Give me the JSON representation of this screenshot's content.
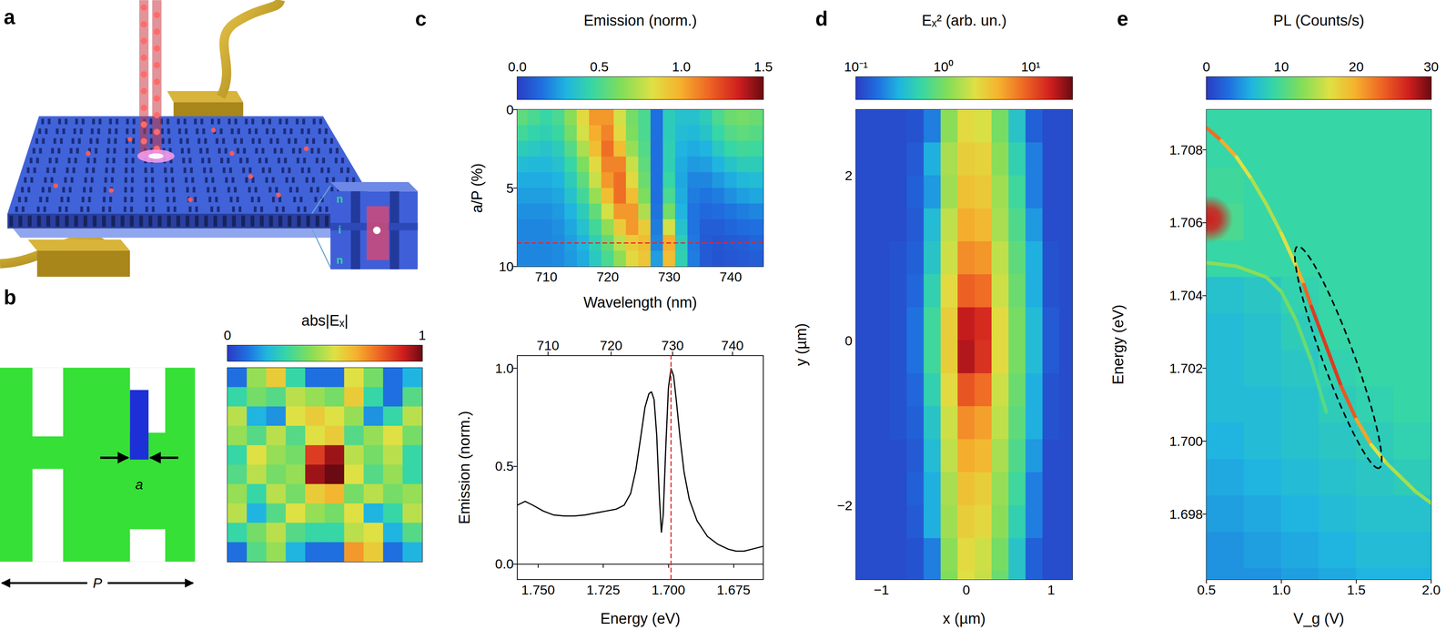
{
  "panel_labels": [
    "a",
    "b",
    "c",
    "d",
    "e"
  ],
  "diagram_a": {
    "layers": [
      "n",
      "i",
      "n"
    ]
  },
  "diagram_b": {
    "labels": [
      "a",
      "P"
    ]
  },
  "chart_data": [
    {
      "type": "heatmap",
      "tick_labels": false,
      "colorbar": {
        "label": "abs|Eₓ|",
        "clim": [
          0,
          1
        ],
        "ticks": [
          0,
          1
        ]
      },
      "cells": [
        [
          0.1,
          0.45,
          0.6,
          0.3,
          0.1,
          0.1,
          0.55,
          0.4,
          0.1,
          0.2
        ],
        [
          0.3,
          0.4,
          0.35,
          0.5,
          0.45,
          0.4,
          0.6,
          0.3,
          0.1,
          0.35
        ],
        [
          0.5,
          0.2,
          0.15,
          0.55,
          0.6,
          0.55,
          0.45,
          0.15,
          0.3,
          0.5
        ],
        [
          0.45,
          0.35,
          0.5,
          0.35,
          0.55,
          0.6,
          0.35,
          0.45,
          0.55,
          0.4
        ],
        [
          0.3,
          0.55,
          0.45,
          0.4,
          0.85,
          0.95,
          0.5,
          0.4,
          0.5,
          0.3
        ],
        [
          0.35,
          0.5,
          0.4,
          0.45,
          0.95,
          1.0,
          0.55,
          0.35,
          0.45,
          0.3
        ],
        [
          0.45,
          0.3,
          0.5,
          0.4,
          0.6,
          0.65,
          0.4,
          0.5,
          0.4,
          0.45
        ],
        [
          0.5,
          0.2,
          0.35,
          0.55,
          0.45,
          0.4,
          0.55,
          0.2,
          0.3,
          0.5
        ],
        [
          0.3,
          0.4,
          0.5,
          0.35,
          0.3,
          0.3,
          0.5,
          0.55,
          0.2,
          0.35
        ],
        [
          0.1,
          0.35,
          0.45,
          0.2,
          0.1,
          0.1,
          0.7,
          0.6,
          0.1,
          0.2
        ]
      ]
    },
    {
      "type": "heatmap",
      "xlabel": "Wavelength (nm)",
      "ylabel": "a/P (%)",
      "xlim": [
        705.3,
        745.3
      ],
      "ylim": [
        10,
        0
      ],
      "xticks": [
        710,
        720,
        730,
        740
      ],
      "yticks": [
        0,
        5,
        10
      ],
      "colorbar": {
        "label": "Emission (norm.)",
        "clim": [
          0,
          1.5
        ],
        "ticks": [
          {
            "value": 0,
            "label": "0.0"
          },
          0.5,
          {
            "value": 1,
            "label": "1.0"
          },
          1.5
        ]
      },
      "annotations": [
        {
          "y": 8.5,
          "color": "#e8262a",
          "line_style": "dashed"
        }
      ],
      "x": [
        706,
        708,
        710,
        712,
        714,
        716,
        718,
        720,
        722,
        724,
        726,
        728,
        730,
        732,
        734,
        736,
        738,
        740,
        742,
        744,
        746
      ],
      "y": [
        0.5,
        1.5,
        2.5,
        3.5,
        4.5,
        5.5,
        6.5,
        7.5,
        8.5,
        9.5
      ],
      "cells": [
        [
          0.55,
          0.5,
          0.45,
          0.5,
          0.65,
          0.85,
          1.05,
          1.05,
          0.8,
          0.6,
          0.5,
          0.15,
          0.4,
          0.35,
          0.35,
          0.4,
          0.5,
          0.58,
          0.6,
          0.58,
          0.55
        ],
        [
          0.48,
          0.44,
          0.42,
          0.46,
          0.6,
          0.8,
          1.0,
          1.1,
          0.85,
          0.62,
          0.5,
          0.15,
          0.4,
          0.33,
          0.32,
          0.36,
          0.45,
          0.52,
          0.55,
          0.53,
          0.5
        ],
        [
          0.4,
          0.38,
          0.36,
          0.4,
          0.52,
          0.72,
          0.95,
          1.15,
          0.95,
          0.68,
          0.52,
          0.15,
          0.42,
          0.3,
          0.28,
          0.3,
          0.38,
          0.45,
          0.48,
          0.47,
          0.45
        ],
        [
          0.33,
          0.32,
          0.32,
          0.35,
          0.45,
          0.62,
          0.85,
          1.1,
          1.1,
          0.78,
          0.55,
          0.15,
          0.42,
          0.28,
          0.24,
          0.25,
          0.3,
          0.36,
          0.4,
          0.4,
          0.38
        ],
        [
          0.28,
          0.28,
          0.28,
          0.3,
          0.4,
          0.55,
          0.78,
          1.05,
          1.15,
          0.85,
          0.58,
          0.15,
          0.45,
          0.27,
          0.2,
          0.2,
          0.24,
          0.28,
          0.32,
          0.33,
          0.32
        ],
        [
          0.25,
          0.25,
          0.25,
          0.27,
          0.35,
          0.48,
          0.68,
          0.95,
          1.15,
          0.95,
          0.62,
          0.15,
          0.5,
          0.28,
          0.18,
          0.16,
          0.18,
          0.22,
          0.25,
          0.27,
          0.27
        ],
        [
          0.22,
          0.22,
          0.22,
          0.24,
          0.3,
          0.4,
          0.56,
          0.8,
          1.05,
          1.05,
          0.72,
          0.16,
          0.6,
          0.3,
          0.16,
          0.13,
          0.14,
          0.16,
          0.18,
          0.2,
          0.2
        ],
        [
          0.2,
          0.2,
          0.2,
          0.22,
          0.27,
          0.35,
          0.48,
          0.66,
          0.9,
          1.05,
          0.9,
          0.18,
          0.8,
          0.35,
          0.16,
          0.1,
          0.1,
          0.12,
          0.14,
          0.15,
          0.15
        ],
        [
          0.2,
          0.2,
          0.2,
          0.21,
          0.25,
          0.3,
          0.42,
          0.56,
          0.75,
          0.9,
          0.95,
          0.2,
          1.0,
          0.4,
          0.17,
          0.09,
          0.08,
          0.09,
          0.1,
          0.12,
          0.12
        ],
        [
          0.2,
          0.2,
          0.2,
          0.21,
          0.24,
          0.28,
          0.38,
          0.5,
          0.66,
          0.85,
          0.92,
          0.25,
          0.95,
          0.42,
          0.18,
          0.09,
          0.07,
          0.08,
          0.09,
          0.1,
          0.1
        ]
      ]
    },
    {
      "type": "line",
      "xlabel": "Energy (eV)",
      "ylabel": "Emission (norm.)",
      "color": "#000000",
      "xlim": [
        1.758,
        1.6636
      ],
      "ylim": [
        -0.08,
        1.065
      ],
      "xticks": [
        {
          "value": 1.75,
          "label": "1.750"
        },
        1.725,
        {
          "value": 1.7,
          "label": "1.700"
        },
        1.675
      ],
      "x2ticks": [
        {
          "value": 1.74625,
          "label": "710"
        },
        {
          "value": 1.722,
          "label": "720"
        },
        {
          "value": 1.69841,
          "label": "730"
        },
        {
          "value": 1.67546,
          "label": "740"
        }
      ],
      "yticks": [
        {
          "value": 0,
          "label": "0.0"
        },
        0.5,
        {
          "value": 1,
          "label": "1.0"
        }
      ],
      "annotations": [
        {
          "x": 1.699,
          "color": "#e8262a",
          "line_style": "dashed"
        }
      ],
      "x": [
        1.758,
        1.755,
        1.752,
        1.748,
        1.744,
        1.74,
        1.736,
        1.732,
        1.728,
        1.724,
        1.72,
        1.717,
        1.7145,
        1.7125,
        1.7105,
        1.709,
        1.7075,
        1.7065,
        1.7055,
        1.7045,
        1.7035,
        1.7027,
        1.702,
        1.701,
        1.7,
        1.699,
        1.698,
        1.697,
        1.6955,
        1.694,
        1.692,
        1.689,
        1.685,
        1.681,
        1.677,
        1.674,
        1.671,
        1.668,
        1.6636
      ],
      "values": [
        0.3,
        0.32,
        0.3,
        0.27,
        0.25,
        0.245,
        0.245,
        0.25,
        0.26,
        0.27,
        0.28,
        0.3,
        0.36,
        0.48,
        0.66,
        0.8,
        0.87,
        0.88,
        0.84,
        0.66,
        0.35,
        0.16,
        0.25,
        0.6,
        0.9,
        1.0,
        0.96,
        0.84,
        0.64,
        0.47,
        0.33,
        0.22,
        0.14,
        0.1,
        0.075,
        0.065,
        0.065,
        0.075,
        0.09
      ]
    },
    {
      "type": "heatmap",
      "xlabel": "x (µm)",
      "ylabel": "y (µm)",
      "xlim": [
        -1.3,
        1.25
      ],
      "ylim": [
        -2.9,
        2.8
      ],
      "xticks": [
        {
          "value": -1,
          "label": "−1"
        },
        0,
        1
      ],
      "yticks": [
        {
          "value": -2,
          "label": "−2"
        },
        0,
        2
      ],
      "colorbar": {
        "label": "Eₓ² (arb. un.)",
        "clim": [
          0.1,
          30
        ],
        "log": true,
        "ticks": [
          {
            "value": 0.1,
            "label": "10⁻¹"
          },
          {
            "value": 1,
            "label": "10⁰"
          },
          {
            "value": 10,
            "label": "10¹"
          }
        ]
      },
      "x": [
        -1.2,
        -1.0,
        -0.8,
        -0.6,
        -0.4,
        -0.2,
        0,
        0.2,
        0.4,
        0.6,
        0.8,
        1.0,
        1.2
      ],
      "y": [
        2.6,
        2.2,
        1.8,
        1.4,
        1.0,
        0.6,
        0.2,
        -0.2,
        -0.6,
        -1.0,
        -1.4,
        -1.8,
        -2.2,
        -2.6,
        -3.0
      ],
      "cells": [
        [
          0.12,
          0.12,
          0.12,
          0.13,
          0.2,
          1.2,
          2.5,
          2.2,
          1.0,
          0.4,
          0.15,
          0.12,
          0.12
        ],
        [
          0.12,
          0.12,
          0.12,
          0.14,
          0.3,
          1.5,
          3,
          2.8,
          1.2,
          0.5,
          0.2,
          0.12,
          0.12
        ],
        [
          0.12,
          0.12,
          0.12,
          0.15,
          0.25,
          1.4,
          3.5,
          3.2,
          1.4,
          0.6,
          0.2,
          0.12,
          0.12
        ],
        [
          0.12,
          0.12,
          0.12,
          0.14,
          0.35,
          1.8,
          4.5,
          4,
          1.5,
          0.7,
          0.25,
          0.12,
          0.12
        ],
        [
          0.12,
          0.12,
          0.13,
          0.15,
          0.4,
          2,
          6,
          5.5,
          1.8,
          0.8,
          0.3,
          0.13,
          0.12
        ],
        [
          0.12,
          0.12,
          0.13,
          0.16,
          0.5,
          2.5,
          9,
          8,
          2,
          0.9,
          0.3,
          0.13,
          0.12
        ],
        [
          0.12,
          0.12,
          0.13,
          0.18,
          0.6,
          3,
          18,
          15,
          2.5,
          1,
          0.35,
          0.14,
          0.12
        ],
        [
          0.12,
          0.12,
          0.13,
          0.18,
          0.6,
          3,
          20,
          14,
          2.5,
          1,
          0.35,
          0.14,
          0.12
        ],
        [
          0.12,
          0.12,
          0.13,
          0.16,
          0.5,
          2.5,
          10,
          8,
          2,
          0.9,
          0.3,
          0.13,
          0.12
        ],
        [
          0.12,
          0.12,
          0.13,
          0.15,
          0.4,
          2,
          6,
          5,
          1.8,
          0.8,
          0.3,
          0.13,
          0.12
        ],
        [
          0.12,
          0.12,
          0.12,
          0.14,
          0.35,
          1.8,
          4.5,
          4,
          1.5,
          0.7,
          0.25,
          0.12,
          0.12
        ],
        [
          0.12,
          0.12,
          0.12,
          0.15,
          0.3,
          1.5,
          3.5,
          3,
          1.3,
          0.6,
          0.2,
          0.12,
          0.12
        ],
        [
          0.12,
          0.12,
          0.12,
          0.14,
          0.3,
          1.4,
          3,
          2.6,
          1.2,
          0.5,
          0.2,
          0.12,
          0.12
        ],
        [
          0.12,
          0.12,
          0.12,
          0.13,
          0.2,
          1.2,
          2.5,
          2,
          1,
          0.4,
          0.15,
          0.12,
          0.12
        ],
        [
          0.12,
          0.12,
          0.12,
          0.13,
          0.2,
          1.1,
          2.3,
          1.9,
          0.9,
          0.4,
          0.15,
          0.12,
          0.12
        ]
      ]
    },
    {
      "type": "heatmap",
      "xlabel": "V_g (V)",
      "ylabel": "Energy (eV)",
      "xlim": [
        0.5,
        2.0
      ],
      "ylim": [
        1.6962,
        1.7091
      ],
      "xticks": [
        0.5,
        {
          "value": 1,
          "label": "1.0"
        },
        1.5,
        {
          "value": 2,
          "label": "2.0"
        }
      ],
      "yticks": [
        1.698,
        {
          "value": 1.7,
          "label": "1.700"
        },
        1.702,
        1.704,
        1.706,
        1.708
      ],
      "colorbar": {
        "label": "PL (Counts/s)",
        "clim": [
          0,
          30
        ],
        "ticks": [
          0,
          10,
          20,
          30
        ]
      },
      "x": [
        0.625,
        0.875,
        1.125,
        1.375,
        1.625,
        1.875
      ],
      "y": [
        1.709,
        1.708,
        1.707,
        1.706,
        1.705,
        1.704,
        1.703,
        1.702,
        1.701,
        1.7,
        1.699,
        1.698,
        1.697,
        1.696
      ],
      "cells": [
        [
          9,
          9,
          9,
          9,
          9,
          9
        ],
        [
          9,
          9,
          9,
          9,
          9,
          9
        ],
        [
          9.5,
          9,
          9,
          9,
          9,
          9
        ],
        [
          10,
          9,
          9,
          9,
          9,
          9
        ],
        [
          9,
          9,
          9,
          9,
          9,
          9
        ],
        [
          7,
          7.5,
          8.5,
          9,
          9,
          9
        ],
        [
          6.5,
          7,
          8,
          9,
          9,
          9
        ],
        [
          6.5,
          7,
          7.5,
          8.5,
          9,
          9
        ],
        [
          6.5,
          6.5,
          7,
          8,
          8.5,
          9
        ],
        [
          6,
          6.5,
          7,
          7.5,
          8,
          8.5
        ],
        [
          5.5,
          6,
          6.5,
          7,
          7.5,
          8
        ],
        [
          5,
          5.5,
          6,
          6.5,
          7,
          7
        ],
        [
          4.5,
          5,
          5.5,
          6,
          6.5,
          6.5
        ],
        [
          4.5,
          4.5,
          5,
          5.5,
          6,
          6
        ]
      ],
      "branches": [
        {
          "x": [
            0.5,
            0.6,
            0.7,
            0.8,
            0.9,
            1.0,
            1.1,
            1.15,
            1.2,
            1.3,
            1.4,
            1.5,
            1.6,
            1.7,
            1.8,
            1.9,
            2.0
          ],
          "y": [
            1.7086,
            1.70825,
            1.7078,
            1.7072,
            1.7065,
            1.7057,
            1.7048,
            1.7043,
            1.7037,
            1.7026,
            1.7015,
            1.7006,
            1.6999,
            1.6994,
            1.699,
            1.6986,
            1.6983
          ],
          "values": [
            24,
            22,
            18,
            15,
            14,
            15,
            18,
            22,
            25,
            26,
            25,
            23,
            18,
            15,
            14,
            14,
            13
          ]
        },
        {
          "x": [
            0.5,
            0.7,
            0.9,
            1.0,
            1.1,
            1.2,
            1.3
          ],
          "y": [
            1.7049,
            1.7048,
            1.7045,
            1.7041,
            1.7033,
            1.7022,
            1.7008
          ],
          "values": [
            13,
            13,
            13,
            12,
            12,
            11,
            10
          ]
        }
      ],
      "spot": {
        "x": 0.52,
        "y": 1.7061,
        "value": 27
      },
      "highlight": {
        "from": [
          1.12,
          1.7052
        ],
        "to": [
          1.64,
          1.6994
        ],
        "line_style": "dashed",
        "color": "#000000"
      }
    }
  ]
}
